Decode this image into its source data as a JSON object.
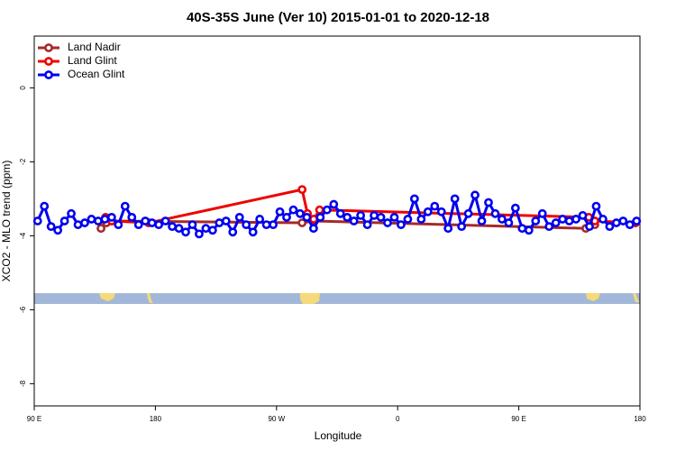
{
  "chart_data": {
    "type": "line",
    "title": "40S-35S June (Ver 10)   2015-01-01 to 2020-12-18",
    "x_label": "Longitude",
    "y_label": "XCO2 - MLO trend (ppm)",
    "xlim": [
      90,
      540
    ],
    "xticks": [
      {
        "value": 90,
        "label": "90 E"
      },
      {
        "value": 180,
        "label": "180"
      },
      {
        "value": 270,
        "label": "90 W"
      },
      {
        "value": 360,
        "label": "0"
      },
      {
        "value": 450,
        "label": "90 E"
      },
      {
        "value": 540,
        "label": "180"
      }
    ],
    "ylim": [
      -8.6,
      1.4
    ],
    "yticks": [
      0,
      -2,
      -4,
      -6,
      -8
    ],
    "legend": "top-left",
    "series": [
      {
        "name": "Land Nadir",
        "color": "#a52a2a",
        "x": [
          139.6,
          143.6,
          147.6,
          289,
          297.6,
          499.8,
          506.5
        ],
        "values": [
          -3.8,
          -3.65,
          -3.6,
          -3.65,
          -3.6,
          -3.8,
          -3.7
        ]
      },
      {
        "name": "Land Glint",
        "color": "#ee0000",
        "x": [
          143,
          147.6,
          175,
          289,
          293,
          297.6,
          302,
          502,
          506.5,
          536.7
        ],
        "values": [
          -3.5,
          -3.6,
          -3.65,
          -2.75,
          -3.4,
          -3.55,
          -3.3,
          -3.5,
          -3.6,
          -3.65
        ]
      },
      {
        "name": "Ocean Glint",
        "color": "#0000ee",
        "x": [
          92.5,
          97.5,
          102.5,
          107.5,
          112.5,
          117.5,
          122.5,
          127.5,
          132.5,
          137.5,
          142.5,
          147.5,
          152.5,
          157.5,
          162.5,
          167.5,
          172.5,
          177.5,
          182.5,
          187.5,
          192.5,
          197.5,
          202.5,
          207.5,
          212.5,
          217.5,
          222.5,
          227.5,
          232.5,
          237.5,
          242.5,
          247.5,
          252.5,
          257.5,
          262.5,
          267.5,
          272.5,
          277.5,
          282.5,
          287.5,
          292.5,
          297.5,
          302.5,
          307.5,
          312.5,
          317.5,
          322.5,
          327.5,
          332.5,
          337.5,
          342.5,
          347.5,
          352.5,
          357.5,
          362.5,
          367.5,
          372.5,
          377.5,
          382.5,
          387.5,
          392.5,
          397.5,
          402.5,
          407.5,
          412.5,
          417.5,
          422.5,
          427.5,
          432.5,
          437.5,
          442.5,
          447.5,
          452.5,
          457.5,
          462.5,
          467.5,
          472.5,
          477.5,
          482.5,
          487.5,
          492.5,
          497.5,
          502.5,
          507.5,
          512.5,
          517.5,
          522.5,
          527.5,
          532.5,
          537.5
        ],
        "values": [
          -3.6,
          -3.2,
          -3.75,
          -3.85,
          -3.6,
          -3.4,
          -3.7,
          -3.65,
          -3.55,
          -3.6,
          -3.55,
          -3.5,
          -3.7,
          -3.2,
          -3.5,
          -3.7,
          -3.6,
          -3.65,
          -3.7,
          -3.6,
          -3.75,
          -3.8,
          -3.9,
          -3.7,
          -3.95,
          -3.8,
          -3.85,
          -3.65,
          -3.6,
          -3.9,
          -3.5,
          -3.7,
          -3.9,
          -3.55,
          -3.7,
          -3.7,
          -3.35,
          -3.5,
          -3.3,
          -3.4,
          -3.5,
          -3.8,
          -3.5,
          -3.3,
          -3.15,
          -3.4,
          -3.5,
          -3.6,
          -3.45,
          -3.7,
          -3.45,
          -3.5,
          -3.65,
          -3.5,
          -3.7,
          -3.55,
          -3.0,
          -3.55,
          -3.35,
          -3.2,
          -3.35,
          -3.8,
          -3.0,
          -3.75,
          -3.4,
          -2.9,
          -3.6,
          -3.1,
          -3.4,
          -3.55,
          -3.65,
          -3.25,
          -3.8,
          -3.85,
          -3.6,
          -3.4,
          -3.75,
          -3.65,
          -3.55,
          -3.6,
          -3.55,
          -3.45,
          -3.75,
          -3.2,
          -3.55,
          -3.75,
          -3.65,
          -3.6,
          -3.7,
          -3.6
        ]
      }
    ]
  }
}
